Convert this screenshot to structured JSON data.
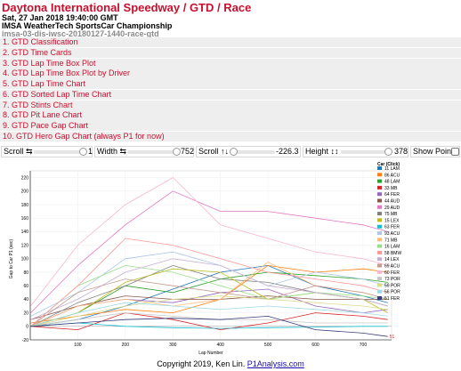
{
  "header": {
    "title": "Daytona International Speedway / GTD / Race",
    "datetime": "Sat, 27 Jan 2018 19:40:00 GMT",
    "series": "IMSA WeatherTech SportsCar Championship",
    "session_id": "imsa-03-dis-iwsc-20180127-1440-race-gtd"
  },
  "menu": [
    "1. GTD Classification",
    "2. GTD Time Cards",
    "3. GTD Lap Time Box Plot",
    "4. GTD Lap Time Box Plot by Driver",
    "5. GTD Lap Time Chart",
    "6. GTD Sorted Lap Time Chart",
    "7. GTD Stints Chart",
    "8. GTD Pit Lane Chart",
    "9. GTD Pace Gap Chart",
    "10. GTD Hero Gap Chart (always P1 for now)"
  ],
  "controls": {
    "scroll_x_label": "Scroll ⇆",
    "scroll_x_value": "1",
    "width_label": "Width ⇆",
    "width_value": "752",
    "scroll_y_label": "Scroll ↑↓",
    "scroll_y_value": "-226.3",
    "height_label": "Height ↕↕",
    "height_value": "378",
    "show_points_label": "Show Points"
  },
  "legend": {
    "title": "Car (Click)",
    "items": [
      {
        "label": "11 LAM",
        "color": "#1f77b4"
      },
      {
        "label": "86 ACU",
        "color": "#ff7f0e"
      },
      {
        "label": "48 LAM",
        "color": "#2ca02c"
      },
      {
        "label": "33 MB",
        "color": "#d62728"
      },
      {
        "label": "64 FER",
        "color": "#9467bd"
      },
      {
        "label": "44 AUD",
        "color": "#8c564b"
      },
      {
        "label": "29 AUD",
        "color": "#e377c2"
      },
      {
        "label": "75 MB",
        "color": "#7f7f7f"
      },
      {
        "label": "15 LEX",
        "color": "#bcbd22"
      },
      {
        "label": "63 FER",
        "color": "#17becf"
      },
      {
        "label": "93 ACU",
        "color": "#aec7e8"
      },
      {
        "label": "71 MB",
        "color": "#ffbb78"
      },
      {
        "label": "16 LAM",
        "color": "#98df8a"
      },
      {
        "label": "58 BMW",
        "color": "#ff9896"
      },
      {
        "label": "14 LEX",
        "color": "#c5b0d5"
      },
      {
        "label": "69 ACU",
        "color": "#c49c94"
      },
      {
        "label": "60 FER",
        "color": "#f7b6d2"
      },
      {
        "label": "73 POR",
        "color": "#c7c7c7"
      },
      {
        "label": "59 POR",
        "color": "#dbdb8d"
      },
      {
        "label": "56 POR",
        "color": "#9edae5"
      },
      {
        "label": "51 FER",
        "color": "#393b79"
      }
    ]
  },
  "chart_data": {
    "type": "line",
    "xlabel": "Lap Number",
    "ylabel": "Gap to Car P1 (sec)",
    "xlim": [
      0,
      760
    ],
    "ylim": [
      -20,
      230
    ],
    "x_ticks": [
      100,
      200,
      300,
      400,
      500,
      600,
      700
    ],
    "y_ticks": [
      -20,
      0,
      20,
      40,
      60,
      80,
      100,
      120,
      140,
      160,
      180,
      200,
      220
    ],
    "end_label": "51",
    "series": [
      {
        "name": "11 LAM",
        "x": [
          1,
          100,
          200,
          300,
          400,
          500,
          600,
          700,
          752
        ],
        "y": [
          0,
          10,
          30,
          55,
          80,
          90,
          60,
          45,
          35
        ]
      },
      {
        "name": "86 ACU",
        "x": [
          1,
          100,
          200,
          300,
          400,
          500,
          600,
          700,
          752
        ],
        "y": [
          5,
          15,
          25,
          20,
          40,
          90,
          80,
          85,
          80
        ]
      },
      {
        "name": "48 LAM",
        "x": [
          1,
          100,
          200,
          300,
          400,
          500,
          600,
          700,
          752
        ],
        "y": [
          0,
          20,
          60,
          50,
          70,
          80,
          75,
          70,
          65
        ]
      },
      {
        "name": "33 MB",
        "x": [
          1,
          100,
          200,
          300,
          400,
          500,
          600,
          700,
          752
        ],
        "y": [
          0,
          -5,
          20,
          10,
          -5,
          5,
          20,
          15,
          10
        ]
      },
      {
        "name": "64 FER",
        "x": [
          1,
          100,
          200,
          300,
          400,
          500,
          600,
          700,
          752
        ],
        "y": [
          0,
          30,
          40,
          35,
          50,
          55,
          30,
          20,
          25
        ]
      },
      {
        "name": "44 AUD",
        "x": [
          1,
          100,
          200,
          300,
          400,
          500,
          600,
          700,
          752
        ],
        "y": [
          10,
          30,
          45,
          40,
          40,
          45,
          40,
          40,
          40
        ]
      },
      {
        "name": "29 AUD",
        "x": [
          1,
          100,
          200,
          300,
          400,
          500,
          600,
          700,
          752
        ],
        "y": [
          20,
          90,
          150,
          200,
          170,
          170,
          160,
          150,
          140
        ]
      },
      {
        "name": "75 MB",
        "x": [
          1,
          100,
          200,
          300,
          400,
          500,
          600,
          700,
          752
        ],
        "y": [
          0,
          35,
          60,
          90,
          70,
          65,
          50,
          40,
          30
        ]
      },
      {
        "name": "15 LEX",
        "x": [
          1,
          100,
          200,
          300,
          400,
          500,
          600,
          700,
          752
        ],
        "y": [
          0,
          20,
          65,
          85,
          80,
          40,
          50,
          40,
          20
        ]
      },
      {
        "name": "63 FER",
        "x": [
          1,
          100,
          200,
          300,
          400,
          500,
          600,
          700,
          752
        ],
        "y": [
          0,
          5,
          0,
          -2,
          -3,
          -2,
          -1,
          0,
          0
        ]
      },
      {
        "name": "93 ACU",
        "x": [
          1,
          100,
          200,
          300,
          400,
          500,
          600,
          700,
          752
        ],
        "y": [
          15,
          50,
          100,
          110,
          90,
          60,
          80,
          70,
          60
        ]
      },
      {
        "name": "71 MB",
        "x": [
          1,
          100,
          200,
          300,
          400,
          500,
          600,
          700,
          752
        ],
        "y": [
          0,
          30,
          40,
          30,
          40,
          95,
          60,
          50,
          40
        ]
      },
      {
        "name": "16 LAM",
        "x": [
          1,
          100,
          200,
          300,
          400,
          500,
          600,
          700,
          752
        ],
        "y": [
          0,
          60,
          90,
          80,
          60,
          40,
          50,
          45,
          40
        ]
      },
      {
        "name": "58 BMW",
        "x": [
          1,
          100,
          200,
          300,
          400,
          500,
          600,
          700,
          752
        ],
        "y": [
          0,
          60,
          130,
          120,
          100,
          80,
          70,
          60,
          50
        ]
      },
      {
        "name": "14 LEX",
        "x": [
          1,
          100,
          200,
          300,
          400,
          500,
          600,
          700,
          752
        ],
        "y": [
          10,
          40,
          80,
          100,
          90,
          60,
          50,
          40,
          30
        ]
      },
      {
        "name": "69 ACU",
        "x": [
          1,
          100,
          200,
          300,
          400,
          500,
          600,
          700,
          752
        ],
        "y": [
          0,
          50,
          70,
          60,
          50,
          40,
          60,
          50,
          40
        ]
      },
      {
        "name": "60 FER",
        "x": [
          1,
          100,
          200,
          300,
          400,
          500,
          600,
          700,
          752
        ],
        "y": [
          30,
          120,
          180,
          220,
          150,
          130,
          110,
          100,
          90
        ]
      },
      {
        "name": "73 POR",
        "x": [
          1,
          100,
          200,
          300,
          400,
          500,
          600,
          700,
          752
        ],
        "y": [
          0,
          10,
          20,
          15,
          10,
          10,
          5,
          5,
          5
        ]
      },
      {
        "name": "59 POR",
        "x": [
          1,
          100,
          200,
          300,
          400,
          500,
          600,
          700,
          752
        ],
        "y": [
          0,
          15,
          30,
          40,
          45,
          40,
          35,
          30,
          25
        ]
      },
      {
        "name": "56 POR",
        "x": [
          1,
          100,
          200,
          300,
          400,
          500,
          600,
          700,
          752
        ],
        "y": [
          0,
          20,
          35,
          30,
          25,
          30,
          25,
          20,
          15
        ]
      },
      {
        "name": "51 FER",
        "x": [
          1,
          100,
          200,
          300,
          400,
          500,
          600,
          700,
          752
        ],
        "y": [
          0,
          5,
          10,
          12,
          10,
          15,
          -5,
          -10,
          -15
        ]
      }
    ]
  },
  "footer": {
    "copyright": "Copyright 2019, Ken Lin. ",
    "link": "P1Analysis.com"
  }
}
